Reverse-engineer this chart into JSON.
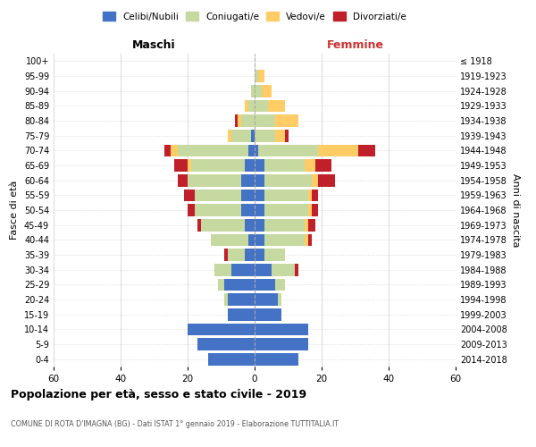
{
  "age_groups": [
    "0-4",
    "5-9",
    "10-14",
    "15-19",
    "20-24",
    "25-29",
    "30-34",
    "35-39",
    "40-44",
    "45-49",
    "50-54",
    "55-59",
    "60-64",
    "65-69",
    "70-74",
    "75-79",
    "80-84",
    "85-89",
    "90-94",
    "95-99",
    "100+"
  ],
  "birth_years": [
    "2014-2018",
    "2009-2013",
    "2004-2008",
    "1999-2003",
    "1994-1998",
    "1989-1993",
    "1984-1988",
    "1979-1983",
    "1974-1978",
    "1969-1973",
    "1964-1968",
    "1959-1963",
    "1954-1958",
    "1949-1953",
    "1944-1948",
    "1939-1943",
    "1934-1938",
    "1929-1933",
    "1924-1928",
    "1919-1923",
    "≤ 1918"
  ],
  "male": {
    "celibi": [
      14,
      17,
      20,
      8,
      8,
      9,
      7,
      3,
      2,
      3,
      4,
      4,
      4,
      3,
      2,
      1,
      0,
      0,
      0,
      0,
      0
    ],
    "coniugati": [
      0,
      0,
      0,
      0,
      1,
      2,
      5,
      5,
      11,
      13,
      14,
      14,
      16,
      16,
      21,
      6,
      4,
      2,
      1,
      0,
      0
    ],
    "vedovi": [
      0,
      0,
      0,
      0,
      0,
      0,
      0,
      0,
      0,
      0,
      0,
      0,
      0,
      1,
      2,
      1,
      1,
      1,
      0,
      0,
      0
    ],
    "divorziati": [
      0,
      0,
      0,
      0,
      0,
      0,
      0,
      1,
      0,
      1,
      2,
      3,
      3,
      4,
      2,
      0,
      1,
      0,
      0,
      0,
      0
    ]
  },
  "female": {
    "nubili": [
      13,
      16,
      16,
      8,
      7,
      6,
      5,
      3,
      3,
      3,
      3,
      3,
      3,
      3,
      1,
      0,
      0,
      0,
      0,
      0,
      0
    ],
    "coniugate": [
      0,
      0,
      0,
      0,
      1,
      3,
      7,
      6,
      12,
      12,
      13,
      13,
      14,
      12,
      18,
      6,
      6,
      4,
      2,
      1,
      0
    ],
    "vedove": [
      0,
      0,
      0,
      0,
      0,
      0,
      0,
      0,
      1,
      1,
      1,
      1,
      2,
      3,
      12,
      3,
      7,
      5,
      3,
      2,
      0
    ],
    "divorziate": [
      0,
      0,
      0,
      0,
      0,
      0,
      1,
      0,
      1,
      2,
      2,
      2,
      5,
      5,
      5,
      1,
      0,
      0,
      0,
      0,
      0
    ]
  },
  "colors": {
    "celibi": "#4472C4",
    "coniugati": "#C6D9A0",
    "vedovi": "#FFCC66",
    "divorziati": "#C0202A"
  },
  "xlim": 60,
  "title": "Popolazione per età, sesso e stato civile - 2019",
  "subtitle": "COMUNE DI ROTA D'IMAGNA (BG) - Dati ISTAT 1° gennaio 2019 - Elaborazione TUTTITALIA.IT",
  "xlabel_left": "Maschi",
  "xlabel_right": "Femmine",
  "ylabel_left": "Fasce di età",
  "ylabel_right": "Anni di nascita",
  "legend_labels": [
    "Celibi/Nubili",
    "Coniugati/e",
    "Vedovi/e",
    "Divorziati/e"
  ]
}
